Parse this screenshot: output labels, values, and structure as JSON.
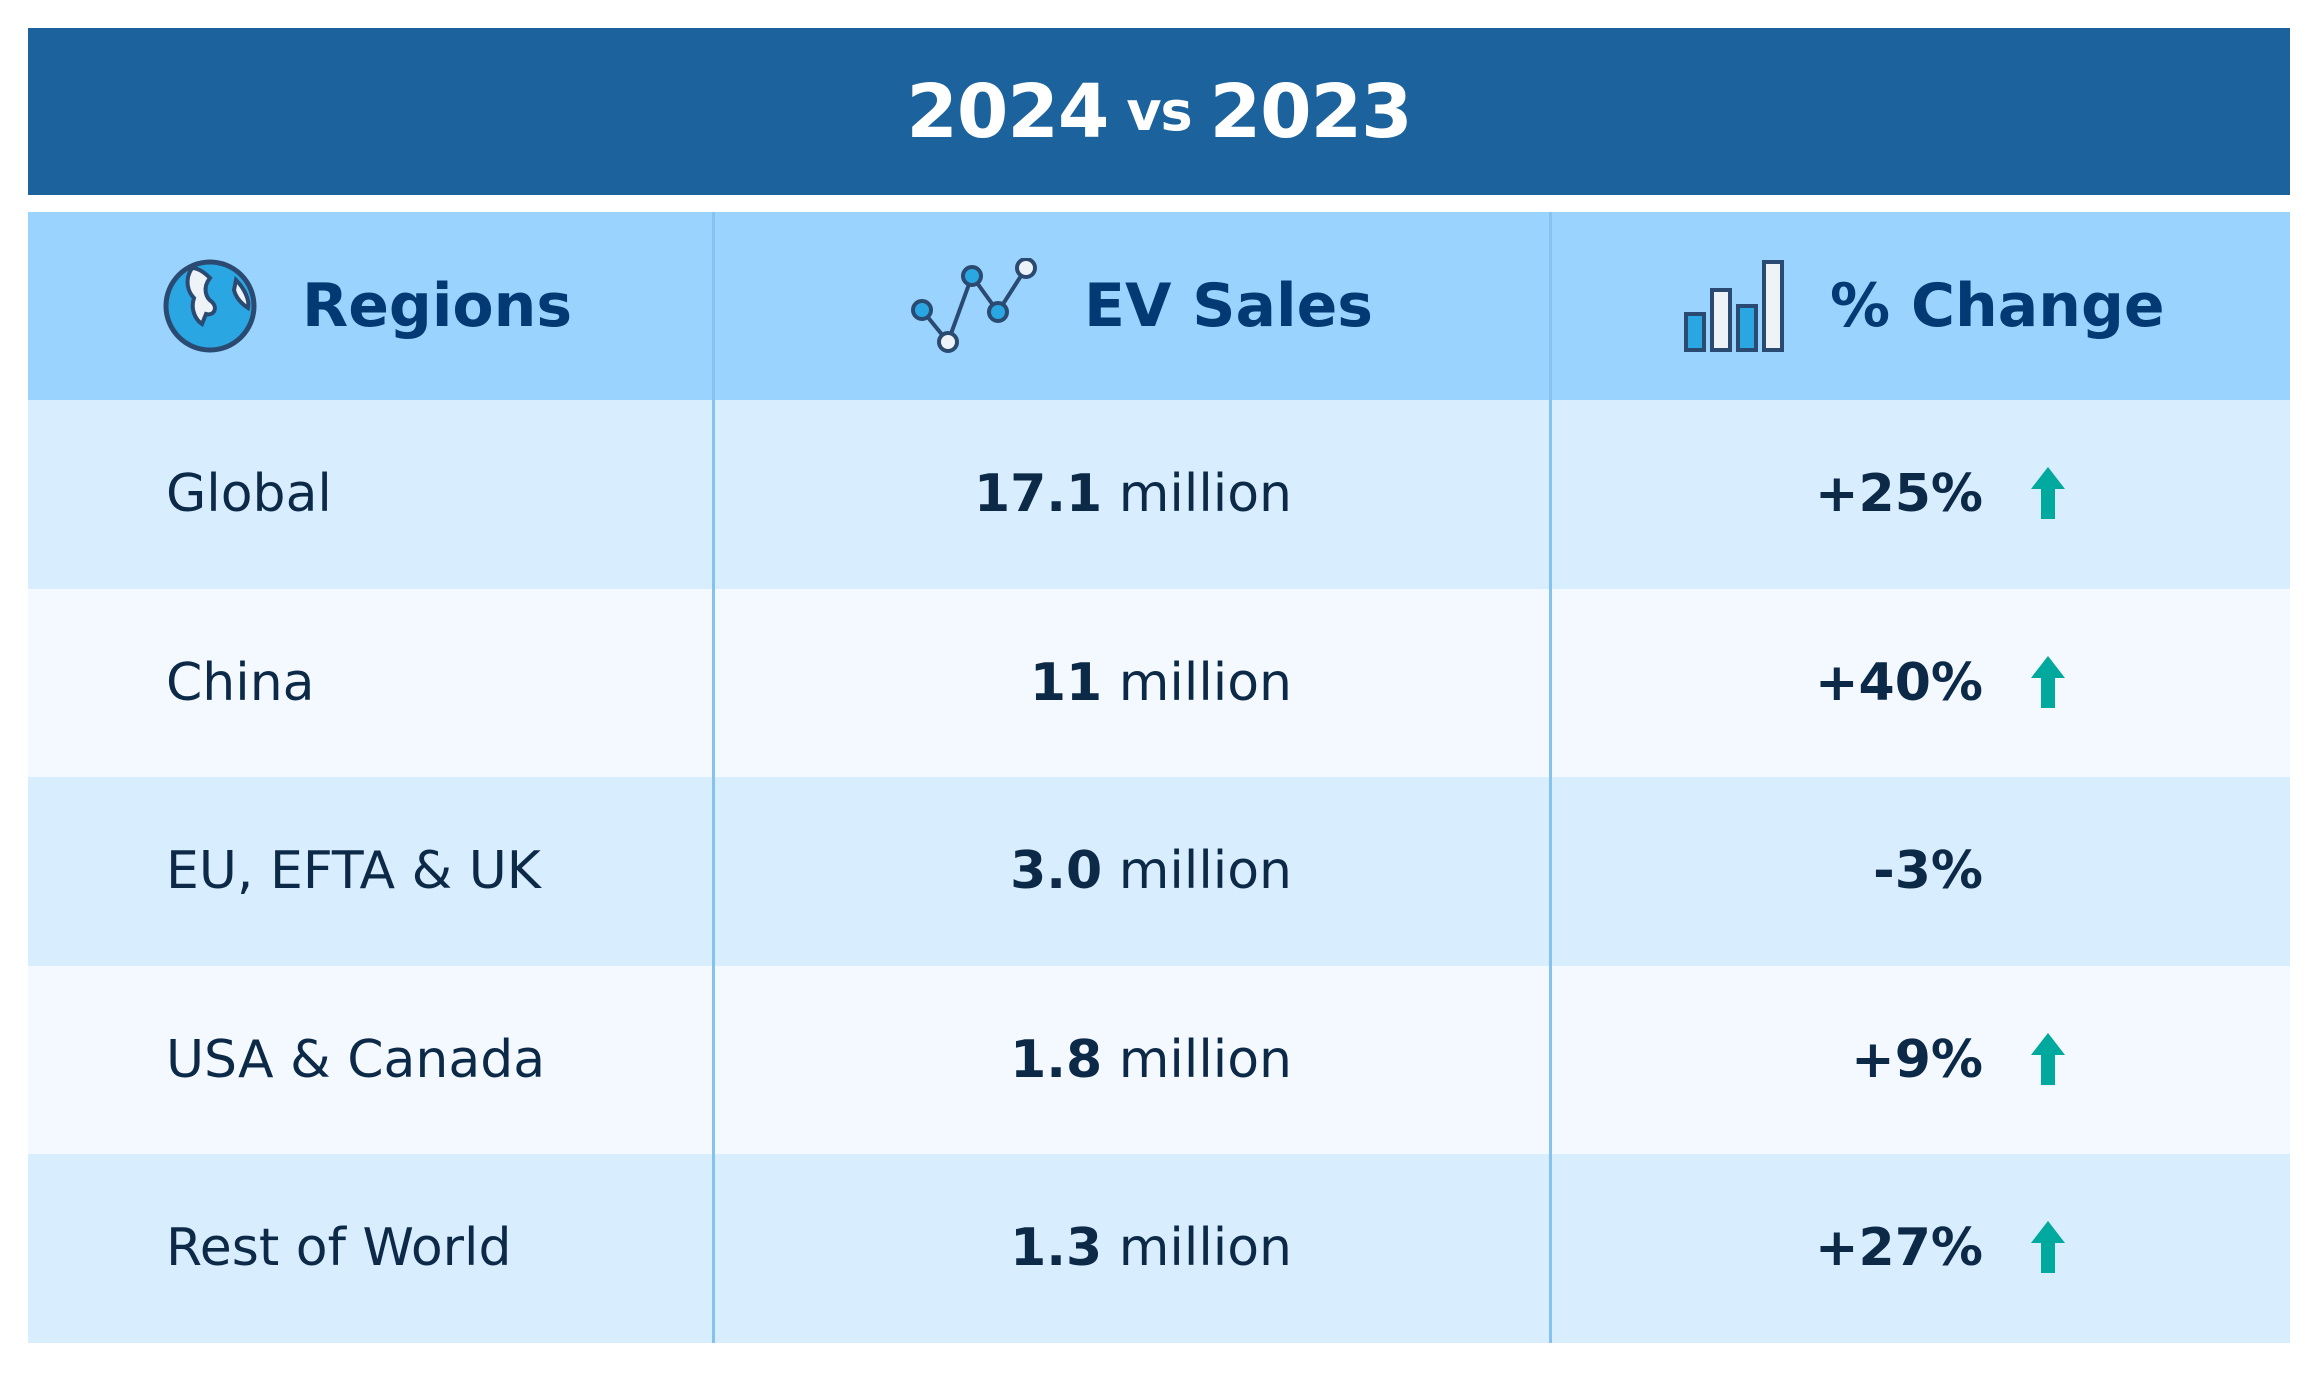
{
  "title": {
    "left": "2024",
    "vs": "vs",
    "right": "2023"
  },
  "columns": [
    {
      "label": "Regions",
      "icon": "globe-icon"
    },
    {
      "label": "EV Sales",
      "icon": "line-chart-icon"
    },
    {
      "label": "% Change",
      "icon": "bar-chart-icon"
    }
  ],
  "rows": [
    {
      "region": "Global",
      "sales_value": "17.1",
      "sales_unit": "million",
      "change": "+25%",
      "trend": "up"
    },
    {
      "region": "China",
      "sales_value": "11",
      "sales_unit": "million",
      "change": "+40%",
      "trend": "up"
    },
    {
      "region": "EU, EFTA & UK",
      "sales_value": "3.0",
      "sales_unit": "million",
      "change": "-3%",
      "trend": "none"
    },
    {
      "region": "USA & Canada",
      "sales_value": "1.8",
      "sales_unit": "million",
      "change": "+9%",
      "trend": "up"
    },
    {
      "region": "Rest of World",
      "sales_value": "1.3",
      "sales_unit": "million",
      "change": "+27%",
      "trend": "up"
    }
  ],
  "colors": {
    "title_bg": "#1c629c",
    "header_bg": "#9ad3fd",
    "row_alt_1": "#d8edfd",
    "row_alt_2": "#f3f9fe",
    "up_arrow": "#00a99d"
  }
}
